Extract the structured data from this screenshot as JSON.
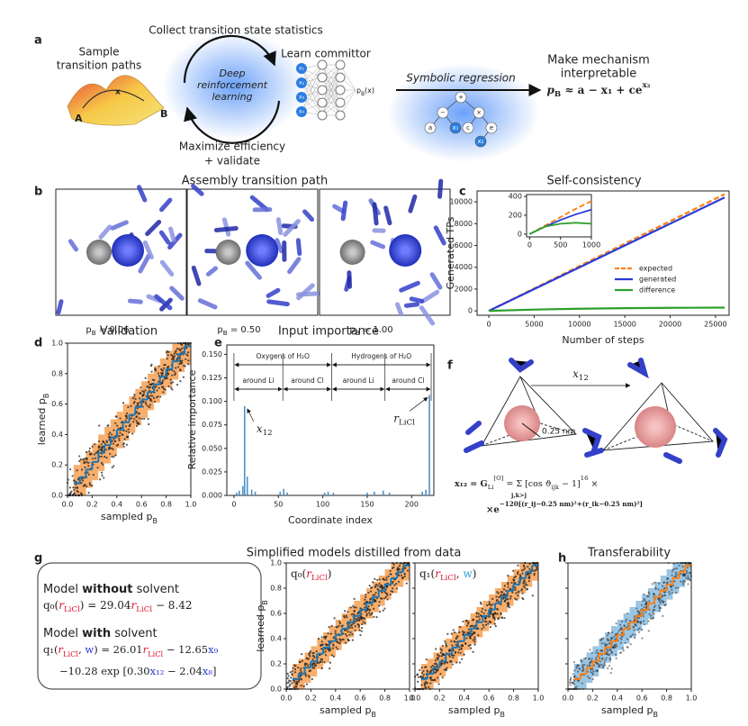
{
  "panel_labels": [
    "a",
    "b",
    "c",
    "d",
    "e",
    "f",
    "g",
    "h"
  ],
  "a": {
    "top_caption": "Collect transition state statistics",
    "sample": [
      "Sample",
      "transition paths"
    ],
    "states": [
      "A",
      "B"
    ],
    "path_label": "x",
    "center": [
      "Deep",
      "reinforcement",
      "learning"
    ],
    "learn": "Learn committor",
    "inputs": [
      "x₁",
      "x₂",
      "x₃",
      "x₄"
    ],
    "net_output": [
      {
        "text": "p"
      },
      {
        "text": "B",
        "sub": true
      },
      {
        "text": "(x)"
      }
    ],
    "bottom_caption": [
      "Maximize efficiency",
      "+ validate"
    ],
    "symbolic": "Symbolic regression",
    "tree_nodes": [
      "+",
      "−",
      "×",
      "a",
      "x₁",
      "c",
      "e",
      "x₂"
    ],
    "interpret": [
      "Make mechanism",
      "interpretable"
    ],
    "formula": [
      {
        "text": "p",
        "italic": true
      },
      {
        "text": "B",
        "sub": true
      },
      {
        "text": " ≈ a − x₁ + ce"
      },
      {
        "text": "x₂",
        "sup": true
      }
    ]
  },
  "b": {
    "title": "Assembly transition path",
    "frames": [
      [
        {
          "text": "p"
        },
        {
          "text": "B",
          "sub": true
        },
        {
          "text": " = 0.06"
        }
      ],
      [
        {
          "text": "p"
        },
        {
          "text": "B",
          "sub": true
        },
        {
          "text": " = 0.50"
        }
      ],
      [
        {
          "text": "p"
        },
        {
          "text": "B",
          "sub": true
        },
        {
          "text": " = 1.00"
        }
      ]
    ]
  },
  "c": {
    "type": "line",
    "title": "Self-consistency",
    "xlabel": "Number of steps",
    "ylabel": "Generated TPs",
    "xlim": [
      -1300,
      26500
    ],
    "ylim": [
      -400,
      11000
    ],
    "xticks": [
      0,
      5000,
      10000,
      15000,
      20000,
      25000
    ],
    "yticks": [
      0,
      2000,
      4000,
      6000,
      8000,
      10000
    ],
    "series": [
      {
        "name": "expected",
        "color": "#ff7f0e",
        "dashed": true,
        "x": [
          0,
          26000
        ],
        "values": [
          0,
          10700
        ]
      },
      {
        "name": "generated",
        "color": "#2a3bd6",
        "x": [
          0,
          26000
        ],
        "values": [
          0,
          10400
        ]
      },
      {
        "name": "difference",
        "color": "#2ca02c",
        "x": [
          0,
          5000,
          10000,
          15000,
          20000,
          26000
        ],
        "values": [
          0,
          120,
          200,
          250,
          280,
          300
        ]
      }
    ],
    "inset": {
      "xlim": [
        -50,
        1000
      ],
      "ylim": [
        -30,
        420
      ],
      "xticks": [
        0,
        500,
        1000
      ],
      "yticks": [
        0,
        200,
        400
      ],
      "series": [
        {
          "color": "#ff7f0e",
          "dashed": true,
          "x": [
            0,
            250,
            500,
            750,
            1000
          ],
          "values": [
            0,
            90,
            180,
            270,
            350
          ]
        },
        {
          "color": "#2a3bd6",
          "x": [
            0,
            250,
            500,
            750,
            1000
          ],
          "values": [
            0,
            80,
            150,
            210,
            260
          ]
        },
        {
          "color": "#2ca02c",
          "x": [
            0,
            250,
            500,
            750,
            1000
          ],
          "values": [
            0,
            80,
            110,
            120,
            110
          ]
        }
      ]
    }
  },
  "unit_ticks": [
    {
      "value": 0,
      "label": "0.0"
    },
    {
      "value": 0.2,
      "label": "0.2"
    },
    {
      "value": 0.4,
      "label": "0.4"
    },
    {
      "value": 0.6,
      "label": "0.6"
    },
    {
      "value": 0.8,
      "label": "0.8"
    },
    {
      "value": 1,
      "label": "1.0"
    }
  ],
  "sampled_label": [
    {
      "text": "sampled p"
    },
    {
      "text": "B",
      "sub": true
    }
  ],
  "learned_label": [
    {
      "text": "learned p"
    },
    {
      "text": "B",
      "sub": true
    }
  ],
  "staircase": {
    "bins": [
      0.05,
      0.1,
      0.15,
      0.2,
      0.25,
      0.3,
      0.35,
      0.4,
      0.45,
      0.5,
      0.55,
      0.6,
      0.65,
      0.7,
      0.75,
      0.8,
      0.85,
      0.9,
      0.95,
      1.0
    ],
    "values": [
      0.08,
      0.12,
      0.17,
      0.22,
      0.28,
      0.33,
      0.38,
      0.43,
      0.48,
      0.53,
      0.58,
      0.63,
      0.68,
      0.73,
      0.78,
      0.83,
      0.88,
      0.93,
      0.98
    ],
    "low": [
      0,
      0,
      0.05,
      0.1,
      0.16,
      0.21,
      0.26,
      0.31,
      0.36,
      0.41,
      0.46,
      0.51,
      0.56,
      0.61,
      0.66,
      0.71,
      0.76,
      0.81,
      0.86
    ],
    "high": [
      0.2,
      0.24,
      0.29,
      0.34,
      0.4,
      0.45,
      0.5,
      0.55,
      0.6,
      0.65,
      0.7,
      0.75,
      0.8,
      0.85,
      0.9,
      0.95,
      1.0,
      1.0,
      1.0
    ]
  },
  "d": {
    "title": "Validation",
    "band_color": "#f7a55c",
    "line_color": "#1f77b4"
  },
  "e": {
    "type": "bar",
    "title": "Input importance",
    "xlabel": "Coordinate index",
    "ylabel": "Relative importance",
    "xlim": [
      -8,
      225
    ],
    "ylim": [
      0,
      0.16
    ],
    "xticks": [
      0,
      50,
      100,
      150,
      200
    ],
    "yticks": [
      {
        "value": 0,
        "label": "0.000"
      },
      {
        "value": 0.025,
        "label": "0.025"
      },
      {
        "value": 0.05,
        "label": "0.050"
      },
      {
        "value": 0.075,
        "label": "0.075"
      },
      {
        "value": 0.1,
        "label": "0.100"
      },
      {
        "value": 0.125,
        "label": "0.125"
      },
      {
        "value": 0.15,
        "label": "0.150"
      }
    ],
    "color": "#4a90c8",
    "x": [
      3,
      6,
      10,
      12,
      15,
      20,
      24,
      52,
      56,
      60,
      102,
      106,
      112,
      150,
      158,
      168,
      175,
      212,
      216,
      220
    ],
    "values": [
      0.003,
      0.005,
      0.01,
      0.095,
      0.02,
      0.006,
      0.004,
      0.004,
      0.007,
      0.003,
      0.003,
      0.004,
      0.003,
      0.003,
      0.004,
      0.005,
      0.003,
      0.004,
      0.006,
      0.107
    ],
    "groups": [
      {
        "label": "Oxygens of H₂O",
        "range": [
          0,
          110
        ]
      },
      {
        "label": "Hydrogens of H₂O",
        "range": [
          110,
          222
        ]
      }
    ],
    "subgroups": [
      {
        "label": "around Li",
        "range": [
          0,
          55
        ]
      },
      {
        "label": "around Cl",
        "range": [
          55,
          110
        ]
      },
      {
        "label": "around Li",
        "range": [
          110,
          170
        ]
      },
      {
        "label": "around Cl",
        "range": [
          170,
          222
        ]
      }
    ],
    "annotations": [
      {
        "parts": [
          {
            "text": "x",
            "italic": true
          },
          {
            "text": "12",
            "sub": true
          }
        ],
        "x": 12,
        "y": 0.095
      },
      {
        "parts": [
          {
            "text": "r",
            "italic": true
          },
          {
            "text": "LiCl",
            "sub": true
          }
        ],
        "x": 220,
        "y": 0.107
      }
    ]
  },
  "f": {
    "arrow_label": [
      {
        "text": "x",
        "italic": true
      },
      {
        "text": "12",
        "sub": true
      }
    ],
    "radius_label": "0.25 nm",
    "formula_line1": [
      {
        "text": "x₁₂ = G",
        "bold": true
      },
      {
        "text": "Li",
        "sub": true
      },
      {
        "text": "[O]",
        "sup": true
      },
      {
        "text": " = Σ [cos ϑ"
      },
      {
        "text": "ijk",
        "sub": true
      },
      {
        "text": " − 1]"
      },
      {
        "text": "16",
        "sup": true
      },
      {
        "text": " ×"
      }
    ],
    "sum_index": "j,k>j",
    "formula_line2": [
      {
        "text": "×e"
      },
      {
        "text": "−120[(r_ij−0.25 nm)²+(r_ik−0.25 nm)²]",
        "sup": true
      }
    ]
  },
  "g": {
    "title": "Simplified models distilled from data",
    "without": [
      {
        "text": "Model "
      },
      {
        "text": "without",
        "bold": true
      },
      {
        "text": " solvent"
      }
    ],
    "eq0": [
      {
        "text": "q₀("
      },
      {
        "text": "r",
        "color": "#e0102f",
        "italic": true
      },
      {
        "text": "LiCl",
        "sub": true,
        "color": "#e0102f"
      },
      {
        "text": ") = 29.04"
      },
      {
        "text": "r",
        "color": "#e0102f",
        "italic": true
      },
      {
        "text": "LiCl",
        "sub": true,
        "color": "#e0102f"
      },
      {
        "text": " − 8.42"
      }
    ],
    "with": [
      {
        "text": "Model "
      },
      {
        "text": "with",
        "bold": true
      },
      {
        "text": " solvent"
      }
    ],
    "eq1": [
      {
        "text": "q₁("
      },
      {
        "text": "r",
        "color": "#e0102f",
        "italic": true
      },
      {
        "text": "LiCl",
        "sub": true,
        "color": "#e0102f"
      },
      {
        "text": ", "
      },
      {
        "text": "w",
        "color": "#2a3bd6"
      },
      {
        "text": ") = 26.01"
      },
      {
        "text": "r",
        "color": "#e0102f",
        "italic": true
      },
      {
        "text": "LiCl",
        "sub": true,
        "color": "#e0102f"
      },
      {
        "text": " − 12.65"
      },
      {
        "text": "x₉",
        "color": "#2a3bd6"
      }
    ],
    "eq2": [
      {
        "text": "−10.28 exp [0.30"
      },
      {
        "text": "x₁₂",
        "color": "#2a3bd6"
      },
      {
        "text": " − 2.04"
      },
      {
        "text": "x₈",
        "color": "#2a3bd6"
      },
      {
        "text": "]"
      }
    ],
    "plots": [
      {
        "label": [
          {
            "text": "q₀("
          },
          {
            "text": "r",
            "color": "#e0102f",
            "italic": true
          },
          {
            "text": "LiCl",
            "sub": true,
            "color": "#e0102f"
          },
          {
            "text": ")"
          }
        ],
        "band_color": "#f7a55c",
        "line_color": "#1f77b4"
      },
      {
        "label": [
          {
            "text": "q₁("
          },
          {
            "text": "r",
            "color": "#e0102f",
            "italic": true
          },
          {
            "text": "LiCl",
            "sub": true,
            "color": "#e0102f"
          },
          {
            "text": ", "
          },
          {
            "text": "w",
            "color": "#2a9fd6"
          },
          {
            "text": ")"
          }
        ],
        "band_color": "#f7a55c",
        "line_color": "#1f77b4"
      }
    ]
  },
  "h": {
    "title": "Transferability",
    "band_color": "#8fbfe0",
    "line_color": "#ff7f0e"
  }
}
